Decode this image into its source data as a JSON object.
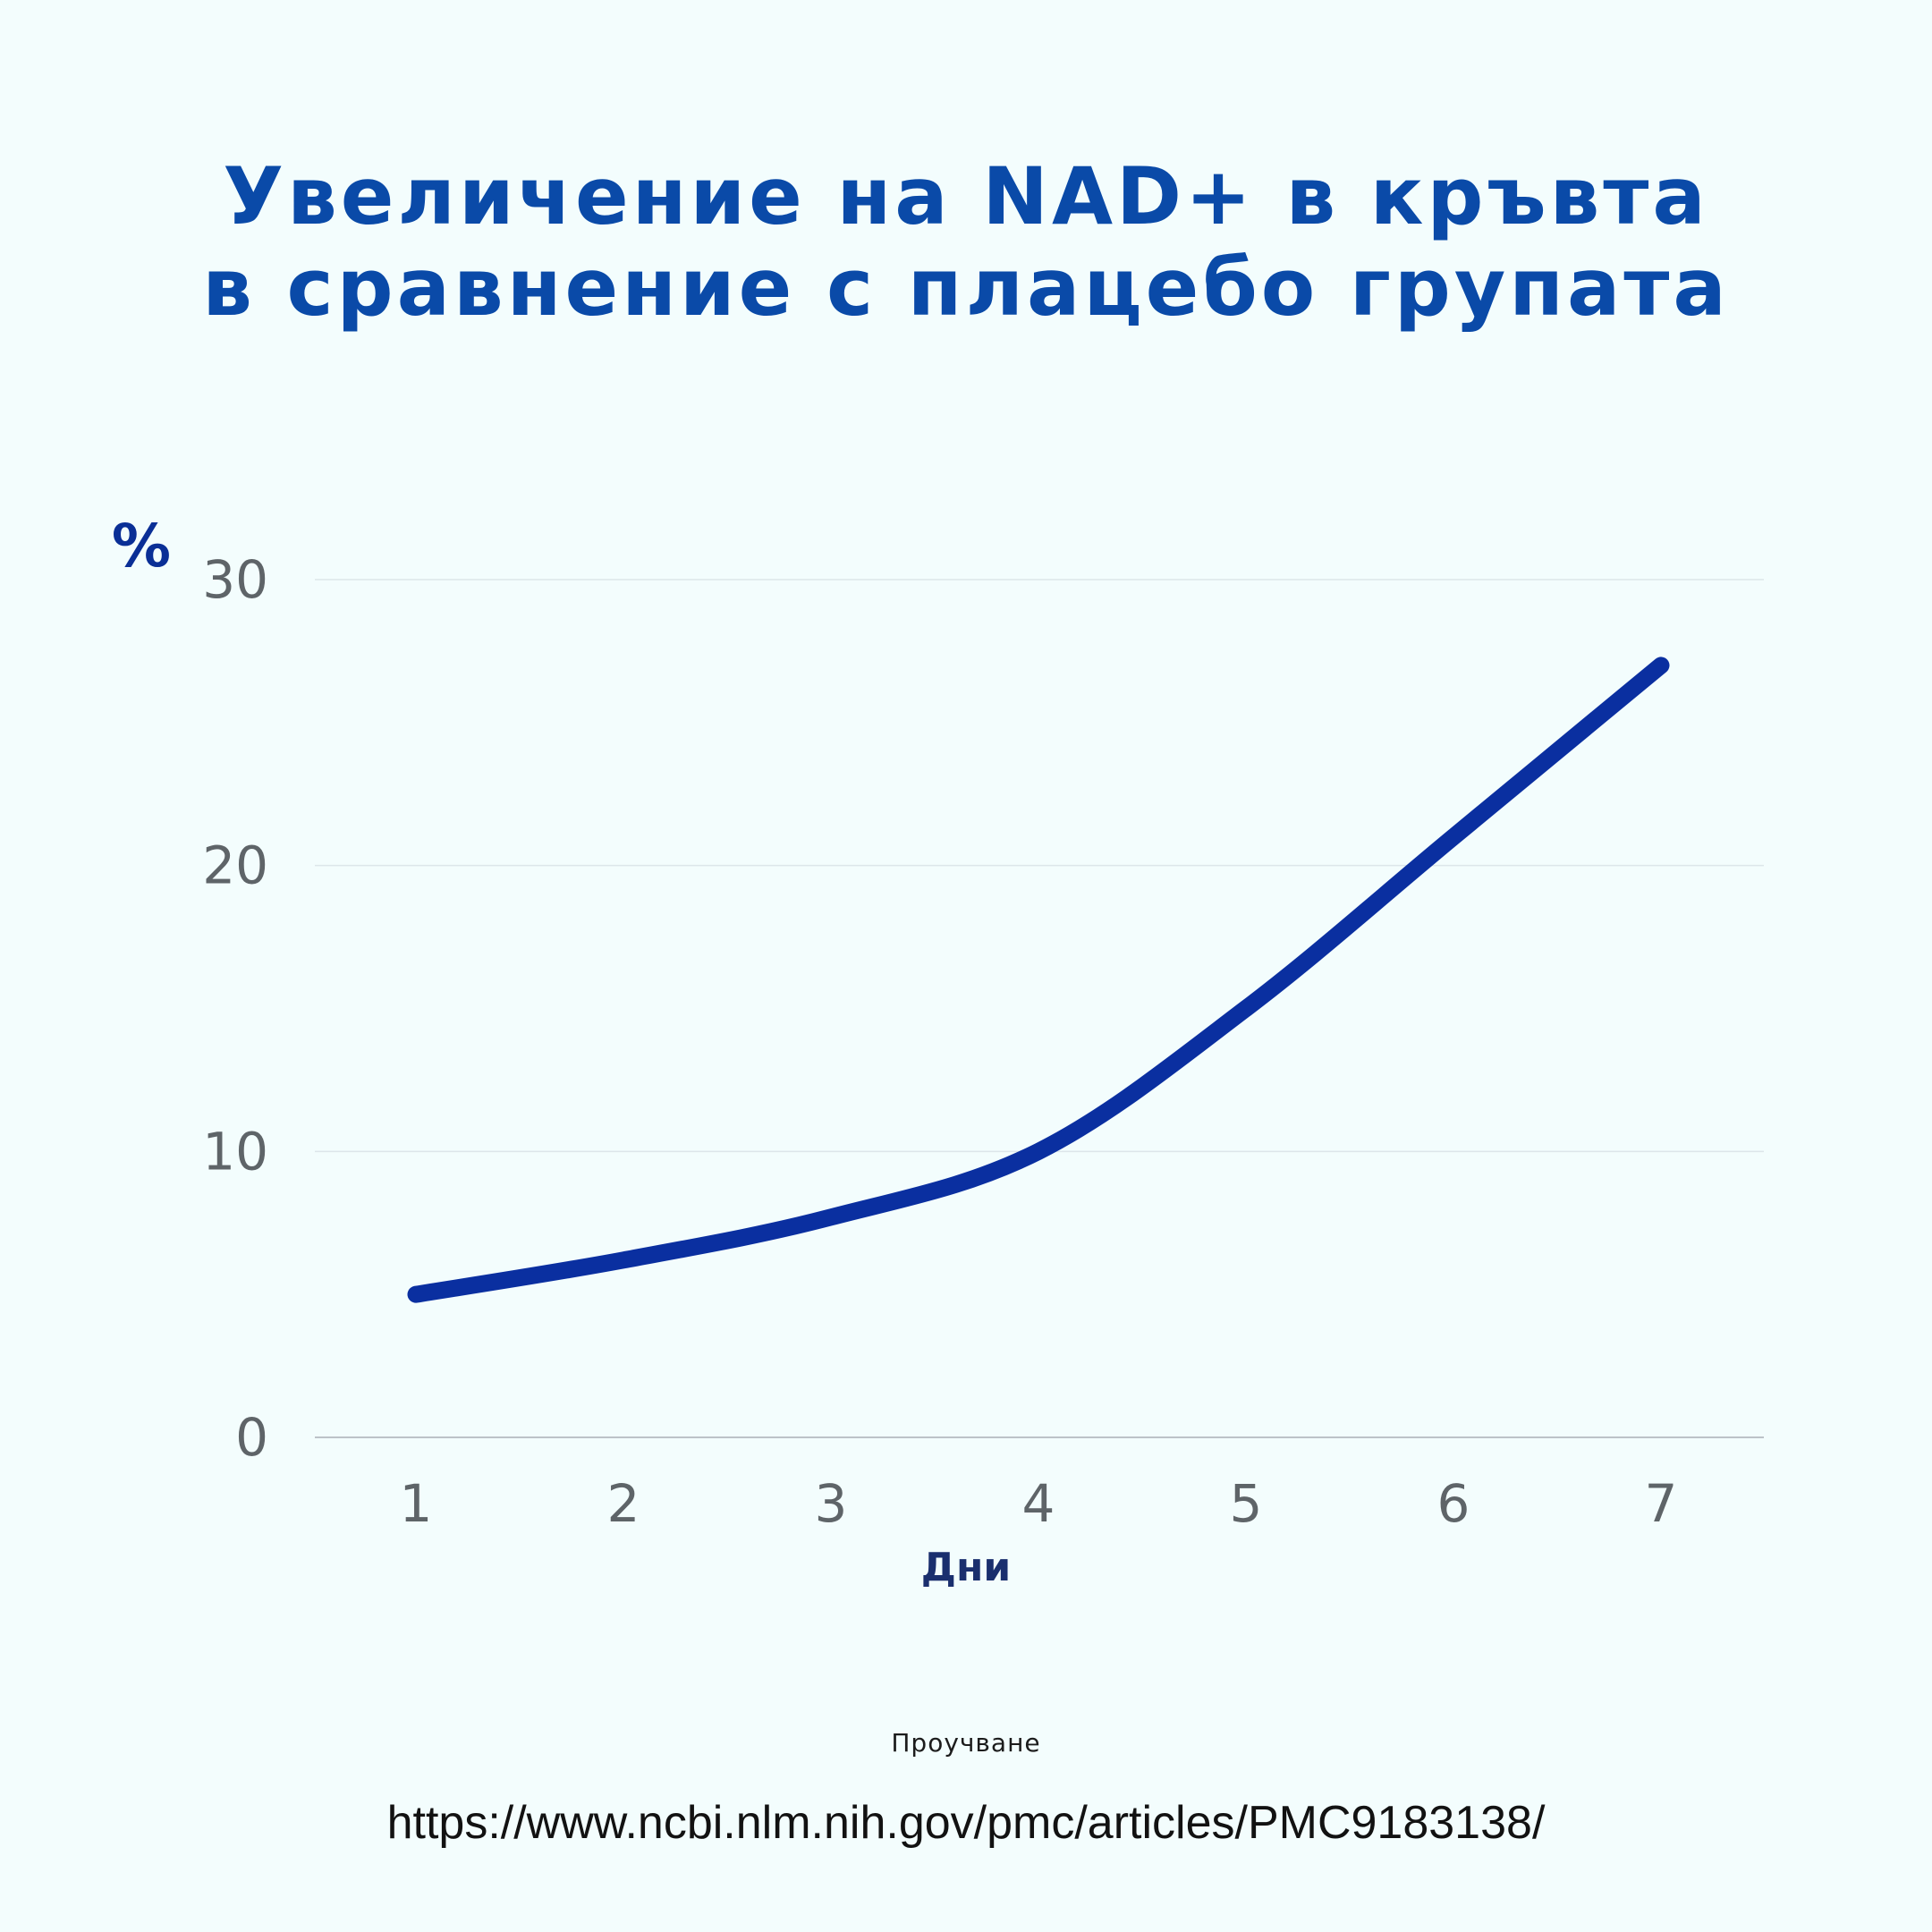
{
  "chart_data": {
    "type": "line",
    "title": [
      "Увеличение на NAD+ в кръвта",
      "в сравнение с плацебо групата"
    ],
    "xlabel": "Дни",
    "ylabel": "%",
    "x": [
      1,
      2,
      3,
      4,
      5,
      6,
      7
    ],
    "x_tick_labels": [
      "1",
      "2",
      "3",
      "4",
      "5",
      "6",
      "7"
    ],
    "y_ticks": [
      0,
      10,
      20,
      30
    ],
    "y_tick_labels": [
      "0",
      "10",
      "20",
      "30"
    ],
    "ylim": [
      0,
      30
    ],
    "grid": true,
    "series": [
      {
        "values": [
          5,
          6.2,
          7.7,
          10,
          15,
          21,
          27
        ]
      }
    ],
    "colors": {
      "line": "#0a2fa0",
      "title": "#0a4aa8",
      "grid": "#dde6ea",
      "baseline": "#bcc3c8",
      "background": "#f3fdfd"
    }
  },
  "footer": {
    "source_label": "Проучване",
    "url": "https://www.ncbi.nlm.nih.gov/pmc/articles/PMC9183138/"
  }
}
